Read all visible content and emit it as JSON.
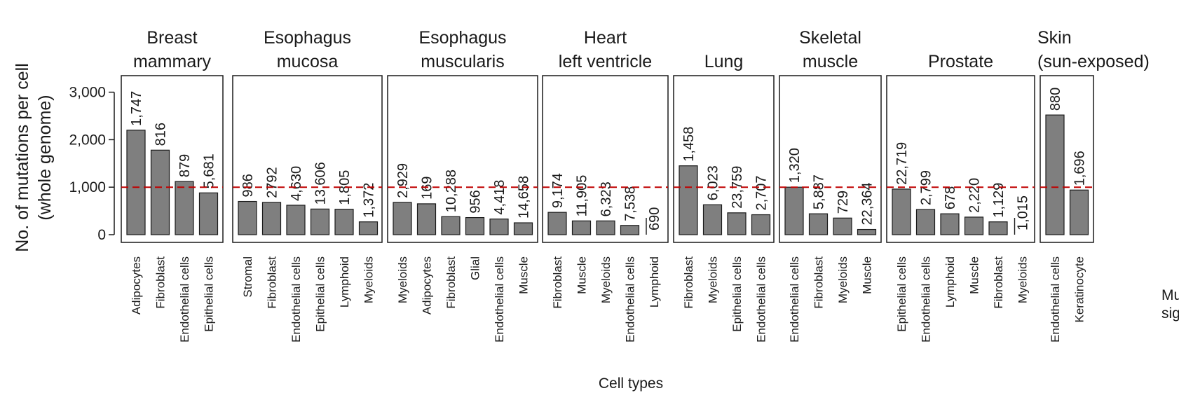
{
  "chart_data": {
    "type": "bar",
    "ylabel": "No. of mutations per cell\n(whole genome)",
    "xlabel": "Cell types",
    "ylim": [
      0,
      3400
    ],
    "yticks": [
      0,
      1000,
      2000,
      3000
    ],
    "ytick_labels": [
      "0",
      "1,000",
      "2,000",
      "3,000"
    ],
    "reference_line": 1000,
    "reference_line_style": "dashed",
    "bar_color": "#7f7f7f",
    "reference_line_color": "#c00000",
    "side_note": [
      "Mu",
      "sig"
    ],
    "panels": [
      {
        "title": [
          "Breast",
          "mammary"
        ],
        "categories": [
          "Adipocytes",
          "Fibroblast",
          "Endothelial cells",
          "Epithelial cells"
        ],
        "values": [
          2200,
          1780,
          1120,
          880
        ],
        "labels": [
          "1,747",
          "816",
          "879",
          "5,681"
        ]
      },
      {
        "title": [
          "Esophagus",
          "mucosa"
        ],
        "categories": [
          "Stromal",
          "Fibroblast",
          "Endothelial cells",
          "Epithelial cells",
          "Lymphoid",
          "Myeloids"
        ],
        "values": [
          700,
          680,
          620,
          540,
          535,
          270
        ],
        "labels": [
          "986",
          "2792",
          "4,630",
          "13,606",
          "1,805",
          "1,372"
        ]
      },
      {
        "title": [
          "Esophagus",
          "muscularis"
        ],
        "categories": [
          "Myeloids",
          "Adipocytes",
          "Fibroblast",
          "Glial",
          "Endothelial cells",
          "Muscle"
        ],
        "values": [
          680,
          650,
          380,
          360,
          330,
          250
        ],
        "labels": [
          "2,929",
          "169",
          "10,288",
          "956",
          "4,418",
          "14,658"
        ]
      },
      {
        "title": [
          "Heart",
          "left ventricle"
        ],
        "categories": [
          "Fibroblast",
          "Muscle",
          "Myeloids",
          "Endothelial cells",
          "Lymphoid"
        ],
        "values": [
          470,
          290,
          290,
          195,
          0
        ],
        "labels": [
          "9,174",
          "11,905",
          "6,323",
          "7,538",
          "690"
        ]
      },
      {
        "title": [
          "Lung"
        ],
        "categories": [
          "Fibroblast",
          "Myeloids",
          "Epithelial cells",
          "Endothelial cells"
        ],
        "values": [
          1450,
          630,
          460,
          420
        ],
        "labels": [
          "1,458",
          "6,023",
          "23,759",
          "2,707"
        ]
      },
      {
        "title": [
          "Skeletal",
          "muscle"
        ],
        "categories": [
          "Endothelial cells",
          "Fibroblast",
          "Myeloids",
          "Muscle"
        ],
        "values": [
          1000,
          440,
          350,
          110
        ],
        "labels": [
          "1,320",
          "5,887",
          "729",
          "22,364"
        ]
      },
      {
        "title": [
          "Prostate"
        ],
        "categories": [
          "Epithelial cells",
          "Endothelial cells",
          "Lymphoid",
          "Muscle",
          "Fibroblast",
          "Myeloids"
        ],
        "values": [
          960,
          530,
          440,
          370,
          270,
          0
        ],
        "labels": [
          "22,719",
          "2,799",
          "678",
          "2,220",
          "1,129",
          "1,015"
        ]
      },
      {
        "title": [
          "Skin",
          "(sun-exposed)"
        ],
        "categories": [
          "Endothelial cells",
          "Keratinocyte"
        ],
        "values": [
          2520,
          940
        ],
        "labels": [
          "880",
          "1,696"
        ]
      }
    ]
  }
}
